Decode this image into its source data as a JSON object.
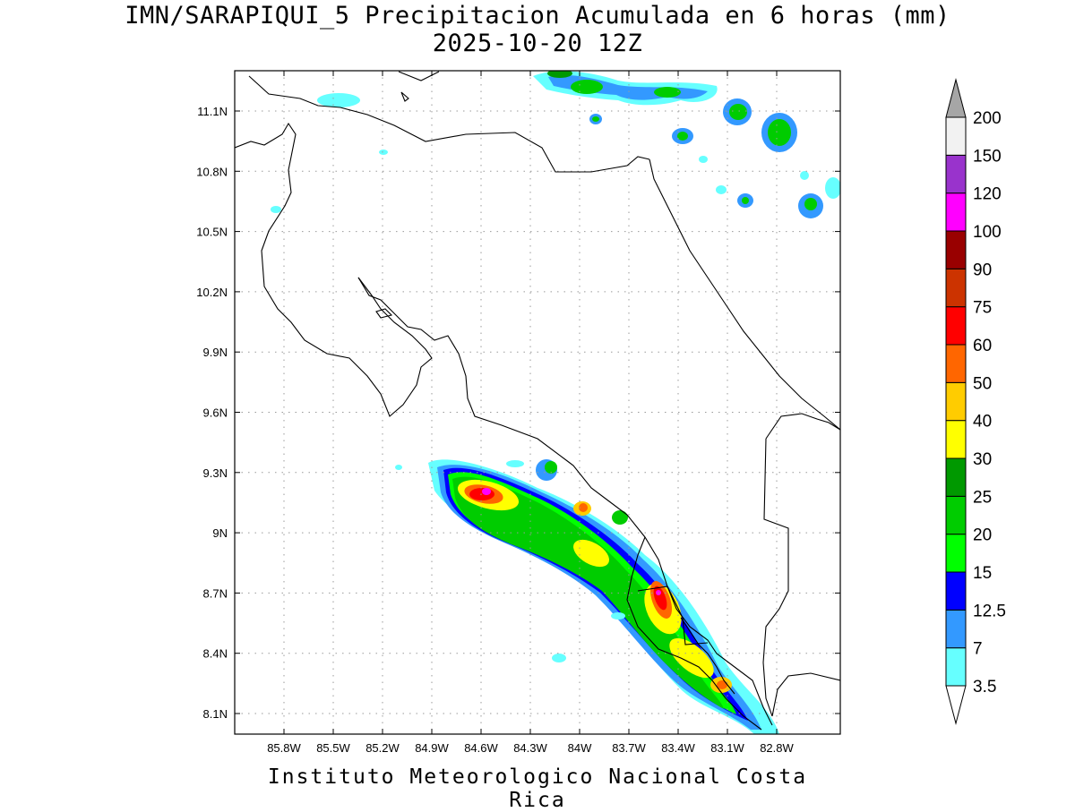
{
  "title": {
    "line1": "IMN/SARAPIQUI_5 Precipitacion Acumulada en 6 horas (mm)",
    "line2": "2025-10-20 12Z"
  },
  "credit": "Instituto Meteorologico Nacional Costa Rica",
  "axes": {
    "lon_ticks": [
      {
        "value": -85.8,
        "label": "85.8W"
      },
      {
        "value": -85.5,
        "label": "85.5W"
      },
      {
        "value": -85.2,
        "label": "85.2W"
      },
      {
        "value": -84.9,
        "label": "84.9W"
      },
      {
        "value": -84.6,
        "label": "84.6W"
      },
      {
        "value": -84.3,
        "label": "84.3W"
      },
      {
        "value": -84.0,
        "label": "84W"
      },
      {
        "value": -83.7,
        "label": "83.7W"
      },
      {
        "value": -83.4,
        "label": "83.4W"
      },
      {
        "value": -83.1,
        "label": "83.1W"
      },
      {
        "value": -82.8,
        "label": "82.8W"
      }
    ],
    "lat_ticks": [
      {
        "value": 11.1,
        "label": "11.1N"
      },
      {
        "value": 10.8,
        "label": "10.8N"
      },
      {
        "value": 10.5,
        "label": "10.5N"
      },
      {
        "value": 10.2,
        "label": "10.2N"
      },
      {
        "value": 9.9,
        "label": "9.9N"
      },
      {
        "value": 9.6,
        "label": "9.6N"
      },
      {
        "value": 9.3,
        "label": "9.3N"
      },
      {
        "value": 9.0,
        "label": "9N"
      },
      {
        "value": 8.7,
        "label": "8.7N"
      },
      {
        "value": 8.4,
        "label": "8.4N"
      },
      {
        "value": 8.1,
        "label": "8.1N"
      }
    ],
    "grid": true
  },
  "colorbar": {
    "levels": [
      {
        "label": "3.5",
        "color": "#66ffff"
      },
      {
        "label": "7",
        "color": "#3399ff"
      },
      {
        "label": "12.5",
        "color": "#0000ff"
      },
      {
        "label": "15",
        "color": "#00ff00"
      },
      {
        "label": "20",
        "color": "#00cc00"
      },
      {
        "label": "25",
        "color": "#009900"
      },
      {
        "label": "30",
        "color": "#ffff00"
      },
      {
        "label": "40",
        "color": "#ffcc00"
      },
      {
        "label": "50",
        "color": "#ff6600"
      },
      {
        "label": "60",
        "color": "#ff0000"
      },
      {
        "label": "75",
        "color": "#cc3300"
      },
      {
        "label": "90",
        "color": "#990000"
      },
      {
        "label": "100",
        "color": "#ff00ff"
      },
      {
        "label": "120",
        "color": "#9933cc"
      },
      {
        "label": "150",
        "color": "#f2f2f2"
      },
      {
        "label": "200",
        "color": "#a6a6a6"
      }
    ]
  }
}
